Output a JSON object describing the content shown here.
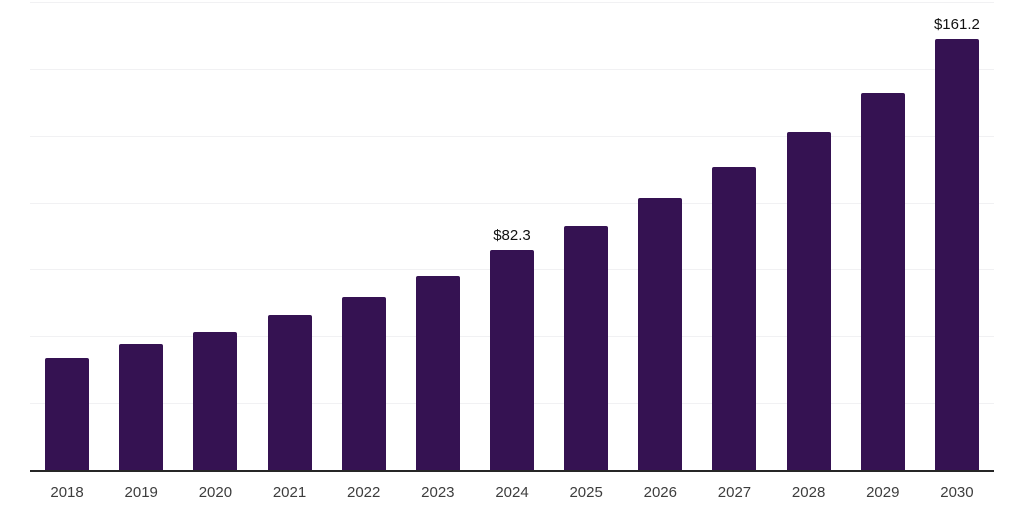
{
  "chart_data": {
    "type": "bar",
    "title": "",
    "xlabel": "",
    "ylabel": "",
    "categories": [
      "2018",
      "2019",
      "2020",
      "2021",
      "2022",
      "2023",
      "2024",
      "2025",
      "2026",
      "2027",
      "2028",
      "2029",
      "2030"
    ],
    "values": [
      41.8,
      47.0,
      51.5,
      57.8,
      64.8,
      72.6,
      82.3,
      91.2,
      101.6,
      113.2,
      126.3,
      140.9,
      161.2
    ],
    "data_labels": [
      "",
      "",
      "",
      "",
      "",
      "",
      "$82.3",
      "",
      "",
      "",
      "",
      "",
      "$161.2"
    ],
    "ylim": [
      0,
      175
    ],
    "gridline_step": 25,
    "grid": true,
    "legend": false,
    "bar_color": "#351252",
    "axis_color": "#262626",
    "gridline_color": "#f1f1f3",
    "tick_label_color": "#3d3d3d",
    "data_label_color": "#111111",
    "background_color": "#ffffff"
  }
}
